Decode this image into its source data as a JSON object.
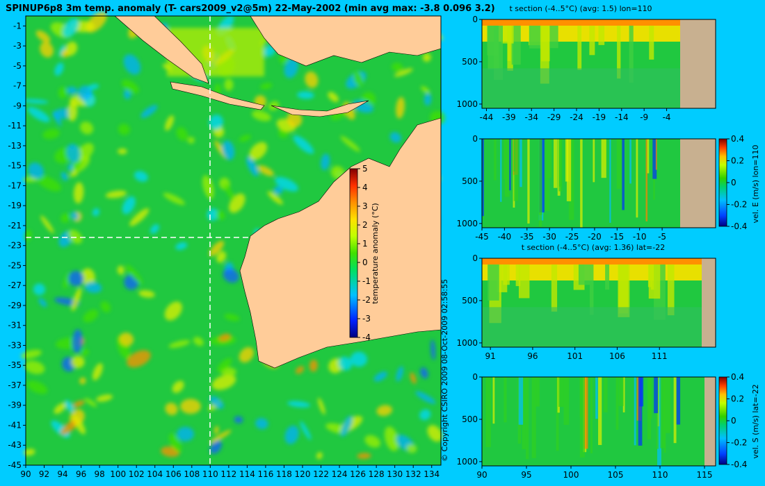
{
  "main_title": "SPINUP6p8 3m temp. anomaly (T- cars2009_v2@5m) 22-May-2002 (min avg max: -3.8 0.096 3.2)",
  "copyright": "© Copyright CSIRO 2009   08-Oct-2009 02:58:55",
  "colors": {
    "background": "#00ccff",
    "land": "#ffcc99",
    "land_section": "#c8b090"
  },
  "chart_data": [
    {
      "type": "heatmap",
      "name": "map",
      "title": "SPINUP6p8 3m temp. anomaly (T- cars2009_v2@5m) 22-May-2002 (min avg max: -3.8 0.096 3.2)",
      "x_ticks": [
        90,
        92,
        94,
        96,
        98,
        100,
        102,
        104,
        106,
        108,
        110,
        112,
        114,
        116,
        118,
        120,
        122,
        124,
        126,
        128,
        130,
        132,
        134
      ],
      "y_ticks": [
        -1,
        -3,
        -5,
        -7,
        -9,
        -11,
        -13,
        -15,
        -17,
        -19,
        -21,
        -23,
        -25,
        -27,
        -29,
        -31,
        -33,
        -35,
        -37,
        -39,
        -41,
        -43,
        -45
      ],
      "xlim": [
        90,
        135
      ],
      "ylim": [
        -45,
        0
      ],
      "reference_lines": {
        "lon": 110,
        "lat": -22
      },
      "colorbar": {
        "label": "temperature anomaly (°C)",
        "ticks": [
          5,
          4,
          3,
          2,
          1,
          0,
          -1,
          -2,
          -3,
          -4
        ],
        "range": [
          -4,
          5
        ]
      }
    },
    {
      "type": "heatmap",
      "name": "t-section-lon110",
      "title": "t section (-4..5°C) (avg: 1.5) lon=110",
      "x_ticks": [
        -44,
        -39,
        -34,
        -29,
        -24,
        -19,
        -14,
        -9,
        -4
      ],
      "y_ticks": [
        0,
        500,
        1000
      ],
      "xlim": [
        -45,
        -1
      ],
      "ylim": [
        0,
        1050
      ]
    },
    {
      "type": "heatmap",
      "name": "vel-e-section-lon110",
      "title": "",
      "x_ticks": [
        -45,
        -40,
        -35,
        -30,
        -25,
        -20,
        -15,
        -10,
        -5
      ],
      "y_ticks": [
        0,
        500,
        1000
      ],
      "xlim": [
        -45,
        -1
      ],
      "ylim": [
        0,
        1050
      ],
      "colorbar": {
        "label": "vel. E (m/s) lon=110",
        "ticks": [
          "0.4",
          "0.2",
          "0",
          "-0.2",
          "-0.4"
        ],
        "range": [
          -0.4,
          0.4
        ]
      }
    },
    {
      "type": "heatmap",
      "name": "t-section-lat-22",
      "title": "t section (-4..5°C) (avg: 1.36) lat=-22",
      "x_ticks": [
        91,
        96,
        101,
        106,
        111
      ],
      "y_ticks": [
        0,
        500,
        1000
      ],
      "xlim": [
        90,
        116
      ],
      "ylim": [
        0,
        1050
      ]
    },
    {
      "type": "heatmap",
      "name": "vel-s-section-lat-22",
      "title": "",
      "x_ticks": [
        90,
        95,
        100,
        105,
        110,
        115
      ],
      "y_ticks": [
        0,
        500,
        1000
      ],
      "xlim": [
        90,
        115
      ],
      "ylim": [
        0,
        1050
      ],
      "colorbar": {
        "label": "vel. S (m/s) lat=-22",
        "ticks": [
          "0.4",
          "0.2",
          "0",
          "-0.2",
          "-0.4"
        ],
        "range": [
          -0.4,
          0.4
        ]
      }
    }
  ]
}
